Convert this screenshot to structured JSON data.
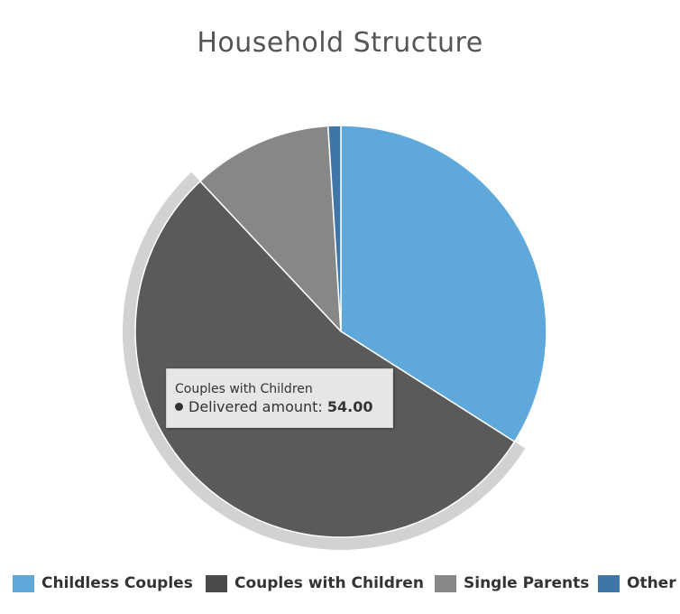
{
  "chart_data": {
    "type": "pie",
    "title": "Household Structure",
    "categories": [
      "Childless Couples",
      "Couples with Children",
      "Single Parents",
      "Other"
    ],
    "values": [
      34.0,
      54.0,
      11.0,
      1.0
    ],
    "colors": [
      "#5ea8dc",
      "#5a5a5a",
      "#878787",
      "#3f75a8"
    ],
    "legend_colors": [
      "#5ea8dc",
      "#4a4a4a",
      "#878787",
      "#3f75a8"
    ],
    "highlighted": "Couples with Children",
    "legend_position": "bottom",
    "tooltip": {
      "title": "Couples with Children",
      "label": "Delivered amount:",
      "value": "54.00"
    }
  }
}
